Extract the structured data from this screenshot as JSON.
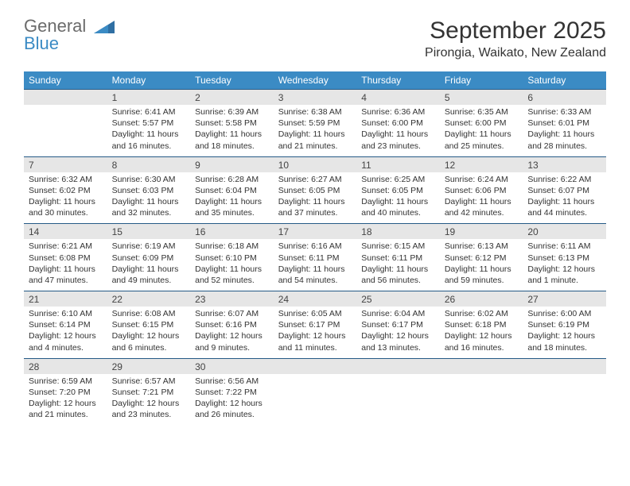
{
  "logo": {
    "line1": "General",
    "line2": "Blue",
    "color_gray": "#6b6b6b",
    "color_blue": "#3b8bc4"
  },
  "title": "September 2025",
  "location": "Pirongia, Waikato, New Zealand",
  "colors": {
    "header_bg": "#3b8bc4",
    "header_fg": "#ffffff",
    "daynum_bg": "#e6e6e6",
    "rule": "#255a86",
    "text": "#333333",
    "page_bg": "#ffffff"
  },
  "day_headers": [
    "Sunday",
    "Monday",
    "Tuesday",
    "Wednesday",
    "Thursday",
    "Friday",
    "Saturday"
  ],
  "weeks": [
    [
      {
        "n": "",
        "sr": "",
        "ss": "",
        "dl": ""
      },
      {
        "n": "1",
        "sr": "Sunrise: 6:41 AM",
        "ss": "Sunset: 5:57 PM",
        "dl": "Daylight: 11 hours and 16 minutes."
      },
      {
        "n": "2",
        "sr": "Sunrise: 6:39 AM",
        "ss": "Sunset: 5:58 PM",
        "dl": "Daylight: 11 hours and 18 minutes."
      },
      {
        "n": "3",
        "sr": "Sunrise: 6:38 AM",
        "ss": "Sunset: 5:59 PM",
        "dl": "Daylight: 11 hours and 21 minutes."
      },
      {
        "n": "4",
        "sr": "Sunrise: 6:36 AM",
        "ss": "Sunset: 6:00 PM",
        "dl": "Daylight: 11 hours and 23 minutes."
      },
      {
        "n": "5",
        "sr": "Sunrise: 6:35 AM",
        "ss": "Sunset: 6:00 PM",
        "dl": "Daylight: 11 hours and 25 minutes."
      },
      {
        "n": "6",
        "sr": "Sunrise: 6:33 AM",
        "ss": "Sunset: 6:01 PM",
        "dl": "Daylight: 11 hours and 28 minutes."
      }
    ],
    [
      {
        "n": "7",
        "sr": "Sunrise: 6:32 AM",
        "ss": "Sunset: 6:02 PM",
        "dl": "Daylight: 11 hours and 30 minutes."
      },
      {
        "n": "8",
        "sr": "Sunrise: 6:30 AM",
        "ss": "Sunset: 6:03 PM",
        "dl": "Daylight: 11 hours and 32 minutes."
      },
      {
        "n": "9",
        "sr": "Sunrise: 6:28 AM",
        "ss": "Sunset: 6:04 PM",
        "dl": "Daylight: 11 hours and 35 minutes."
      },
      {
        "n": "10",
        "sr": "Sunrise: 6:27 AM",
        "ss": "Sunset: 6:05 PM",
        "dl": "Daylight: 11 hours and 37 minutes."
      },
      {
        "n": "11",
        "sr": "Sunrise: 6:25 AM",
        "ss": "Sunset: 6:05 PM",
        "dl": "Daylight: 11 hours and 40 minutes."
      },
      {
        "n": "12",
        "sr": "Sunrise: 6:24 AM",
        "ss": "Sunset: 6:06 PM",
        "dl": "Daylight: 11 hours and 42 minutes."
      },
      {
        "n": "13",
        "sr": "Sunrise: 6:22 AM",
        "ss": "Sunset: 6:07 PM",
        "dl": "Daylight: 11 hours and 44 minutes."
      }
    ],
    [
      {
        "n": "14",
        "sr": "Sunrise: 6:21 AM",
        "ss": "Sunset: 6:08 PM",
        "dl": "Daylight: 11 hours and 47 minutes."
      },
      {
        "n": "15",
        "sr": "Sunrise: 6:19 AM",
        "ss": "Sunset: 6:09 PM",
        "dl": "Daylight: 11 hours and 49 minutes."
      },
      {
        "n": "16",
        "sr": "Sunrise: 6:18 AM",
        "ss": "Sunset: 6:10 PM",
        "dl": "Daylight: 11 hours and 52 minutes."
      },
      {
        "n": "17",
        "sr": "Sunrise: 6:16 AM",
        "ss": "Sunset: 6:11 PM",
        "dl": "Daylight: 11 hours and 54 minutes."
      },
      {
        "n": "18",
        "sr": "Sunrise: 6:15 AM",
        "ss": "Sunset: 6:11 PM",
        "dl": "Daylight: 11 hours and 56 minutes."
      },
      {
        "n": "19",
        "sr": "Sunrise: 6:13 AM",
        "ss": "Sunset: 6:12 PM",
        "dl": "Daylight: 11 hours and 59 minutes."
      },
      {
        "n": "20",
        "sr": "Sunrise: 6:11 AM",
        "ss": "Sunset: 6:13 PM",
        "dl": "Daylight: 12 hours and 1 minute."
      }
    ],
    [
      {
        "n": "21",
        "sr": "Sunrise: 6:10 AM",
        "ss": "Sunset: 6:14 PM",
        "dl": "Daylight: 12 hours and 4 minutes."
      },
      {
        "n": "22",
        "sr": "Sunrise: 6:08 AM",
        "ss": "Sunset: 6:15 PM",
        "dl": "Daylight: 12 hours and 6 minutes."
      },
      {
        "n": "23",
        "sr": "Sunrise: 6:07 AM",
        "ss": "Sunset: 6:16 PM",
        "dl": "Daylight: 12 hours and 9 minutes."
      },
      {
        "n": "24",
        "sr": "Sunrise: 6:05 AM",
        "ss": "Sunset: 6:17 PM",
        "dl": "Daylight: 12 hours and 11 minutes."
      },
      {
        "n": "25",
        "sr": "Sunrise: 6:04 AM",
        "ss": "Sunset: 6:17 PM",
        "dl": "Daylight: 12 hours and 13 minutes."
      },
      {
        "n": "26",
        "sr": "Sunrise: 6:02 AM",
        "ss": "Sunset: 6:18 PM",
        "dl": "Daylight: 12 hours and 16 minutes."
      },
      {
        "n": "27",
        "sr": "Sunrise: 6:00 AM",
        "ss": "Sunset: 6:19 PM",
        "dl": "Daylight: 12 hours and 18 minutes."
      }
    ],
    [
      {
        "n": "28",
        "sr": "Sunrise: 6:59 AM",
        "ss": "Sunset: 7:20 PM",
        "dl": "Daylight: 12 hours and 21 minutes."
      },
      {
        "n": "29",
        "sr": "Sunrise: 6:57 AM",
        "ss": "Sunset: 7:21 PM",
        "dl": "Daylight: 12 hours and 23 minutes."
      },
      {
        "n": "30",
        "sr": "Sunrise: 6:56 AM",
        "ss": "Sunset: 7:22 PM",
        "dl": "Daylight: 12 hours and 26 minutes."
      },
      {
        "n": "",
        "sr": "",
        "ss": "",
        "dl": ""
      },
      {
        "n": "",
        "sr": "",
        "ss": "",
        "dl": ""
      },
      {
        "n": "",
        "sr": "",
        "ss": "",
        "dl": ""
      },
      {
        "n": "",
        "sr": "",
        "ss": "",
        "dl": ""
      }
    ]
  ]
}
